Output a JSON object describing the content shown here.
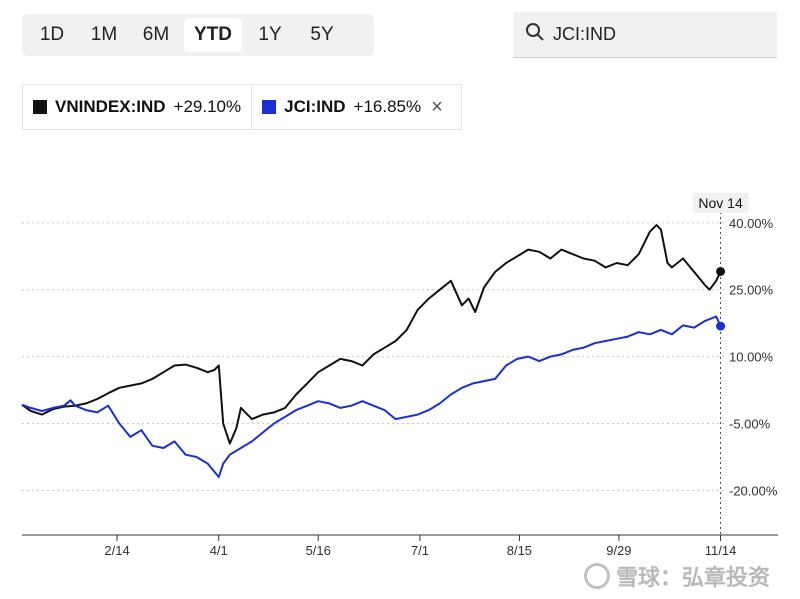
{
  "range_tabs": [
    {
      "label": "1D",
      "active": false
    },
    {
      "label": "1M",
      "active": false
    },
    {
      "label": "6M",
      "active": false
    },
    {
      "label": "YTD",
      "active": true
    },
    {
      "label": "1Y",
      "active": false
    },
    {
      "label": "5Y",
      "active": false
    }
  ],
  "search": {
    "value": "JCI:IND",
    "icon": "search-icon"
  },
  "legend": {
    "item1": {
      "name": "VNINDEX:IND",
      "change": "+29.10%",
      "color": "#111111"
    },
    "item2": {
      "name": "JCI:IND",
      "change": "+16.85%",
      "color": "#1a2fd6",
      "close_icon": "close-icon"
    }
  },
  "watermark": {
    "text": "雪球：弘章投资"
  },
  "chart_data": {
    "type": "line",
    "title": "",
    "xlabel": "",
    "ylabel": "",
    "x_ticks": [
      "2/14",
      "4/1",
      "5/16",
      "7/1",
      "8/15",
      "9/29",
      "11/14"
    ],
    "x_tick_days": [
      44,
      90,
      135,
      181,
      226,
      271,
      317
    ],
    "x_range_days": [
      1,
      319
    ],
    "y_ticks": [
      "40.00%",
      "25.00%",
      "10.00%",
      "-5.00%",
      "-20.00%"
    ],
    "y_tick_values": [
      40,
      25,
      10,
      -5,
      -20
    ],
    "ylim": [
      -30,
      44
    ],
    "grid": true,
    "crosshair": {
      "label": "Nov 14",
      "day": 317
    },
    "series": [
      {
        "name": "VNINDEX:IND",
        "color": "#111111",
        "x": [
          1,
          5,
          10,
          15,
          20,
          25,
          30,
          35,
          40,
          45,
          50,
          55,
          60,
          65,
          70,
          75,
          80,
          85,
          88,
          90,
          92,
          95,
          98,
          100,
          105,
          110,
          115,
          120,
          125,
          130,
          135,
          140,
          145,
          150,
          155,
          160,
          165,
          170,
          175,
          180,
          185,
          190,
          195,
          200,
          203,
          206,
          210,
          215,
          220,
          225,
          230,
          235,
          240,
          245,
          250,
          255,
          260,
          265,
          270,
          275,
          280,
          285,
          288,
          290,
          293,
          295,
          300,
          305,
          310,
          312,
          315,
          317
        ],
        "y": [
          -0.8,
          -2.2,
          -3.0,
          -1.8,
          -1.2,
          -1.0,
          -0.5,
          0.5,
          1.8,
          3.0,
          3.5,
          4.0,
          5.0,
          6.5,
          8.0,
          8.2,
          7.5,
          6.5,
          7.0,
          8.0,
          -5.0,
          -9.5,
          -6.0,
          -1.5,
          -4.0,
          -3.0,
          -2.5,
          -1.5,
          1.5,
          4.0,
          6.5,
          8.0,
          9.5,
          9.0,
          8.0,
          10.5,
          12.0,
          13.5,
          16.0,
          20.5,
          23.0,
          25.0,
          27.0,
          21.5,
          23.0,
          20.0,
          25.5,
          29.0,
          31.0,
          32.5,
          34.0,
          33.5,
          32.0,
          34.0,
          33.0,
          32.0,
          31.5,
          30.0,
          31.0,
          30.5,
          33.0,
          38.0,
          39.5,
          38.5,
          31.0,
          30.0,
          32.0,
          29.0,
          26.0,
          25.0,
          27.0,
          29.1
        ]
      },
      {
        "name": "JCI:IND",
        "color": "#1a2fd6",
        "x": [
          1,
          5,
          10,
          15,
          20,
          23,
          25,
          30,
          35,
          40,
          45,
          50,
          55,
          60,
          65,
          70,
          75,
          80,
          85,
          90,
          92,
          95,
          100,
          105,
          110,
          115,
          120,
          125,
          130,
          135,
          140,
          145,
          150,
          155,
          160,
          165,
          170,
          175,
          180,
          185,
          190,
          195,
          200,
          205,
          210,
          215,
          220,
          225,
          230,
          235,
          240,
          245,
          250,
          255,
          260,
          265,
          270,
          275,
          280,
          285,
          290,
          295,
          300,
          305,
          310,
          315,
          317
        ],
        "y": [
          -0.8,
          -1.5,
          -2.2,
          -1.5,
          -1.0,
          0.2,
          -1.0,
          -2.0,
          -2.5,
          -1.0,
          -5.0,
          -8.0,
          -6.5,
          -10.0,
          -10.5,
          -9.0,
          -12.0,
          -12.5,
          -14.0,
          -17.0,
          -14.0,
          -12.0,
          -10.5,
          -9.0,
          -7.0,
          -5.0,
          -3.5,
          -2.0,
          -1.0,
          0.0,
          -0.5,
          -1.5,
          -1.0,
          0.0,
          -1.0,
          -2.0,
          -4.0,
          -3.5,
          -3.0,
          -2.0,
          -0.5,
          1.5,
          3.0,
          4.0,
          4.5,
          5.0,
          8.0,
          9.5,
          10.0,
          9.0,
          10.0,
          10.5,
          11.5,
          12.0,
          13.0,
          13.5,
          14.0,
          14.5,
          15.5,
          15.0,
          16.0,
          15.0,
          17.0,
          16.5,
          18.0,
          19.0,
          16.85
        ]
      }
    ]
  }
}
